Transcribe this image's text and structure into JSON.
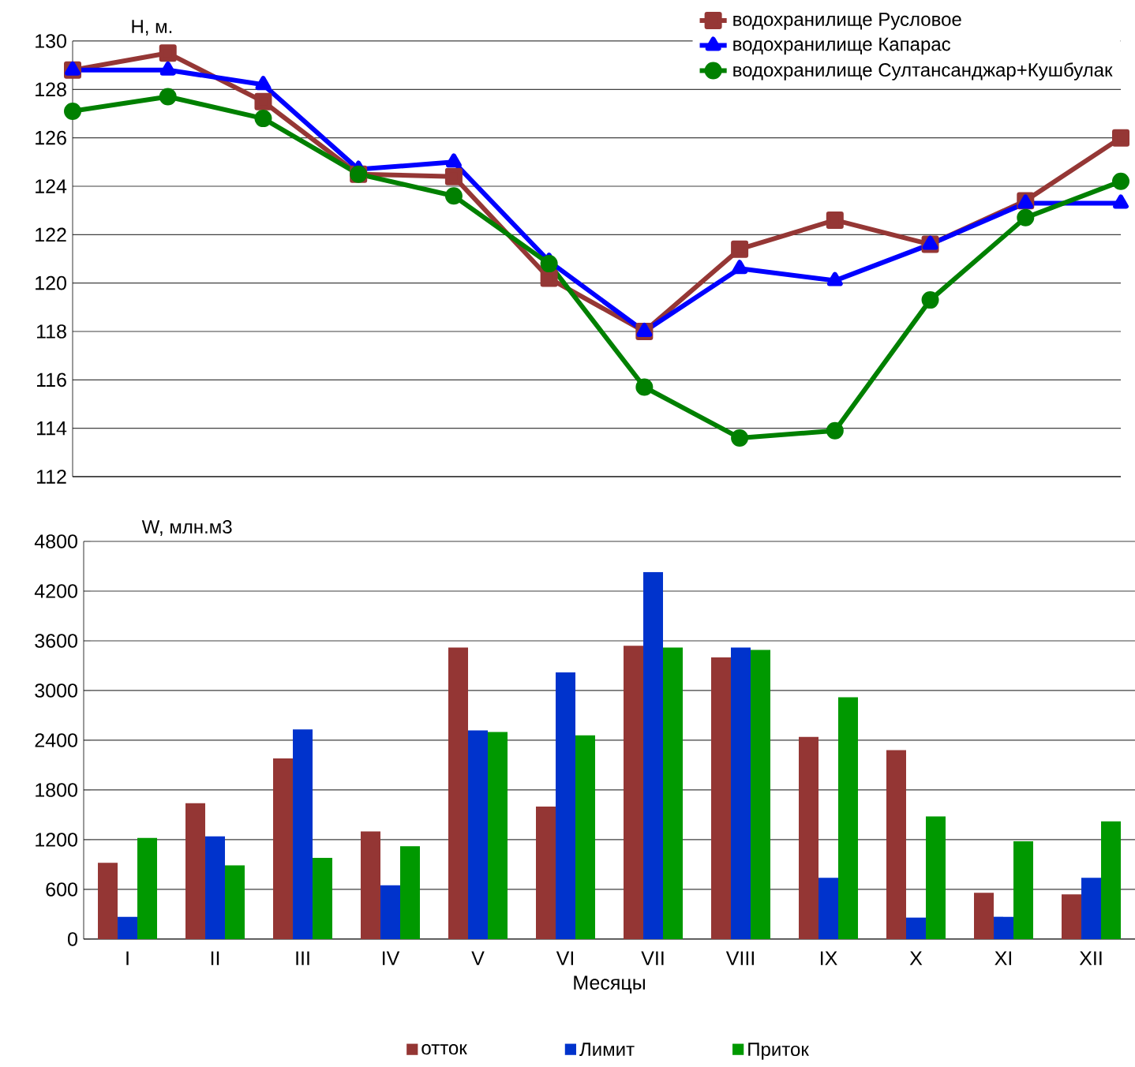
{
  "chart_data": [
    {
      "type": "line",
      "ylabel": "H, м.",
      "categories": [
        null,
        null,
        null,
        null,
        null,
        null,
        null,
        null,
        null,
        null,
        null,
        null
      ],
      "ylim": [
        112,
        130
      ],
      "yticks": [
        112,
        114,
        116,
        118,
        120,
        122,
        124,
        126,
        128,
        130
      ],
      "grid": "y",
      "legend": "top right",
      "line_style": "solid",
      "series": [
        {
          "name": "водохранилище Русловое",
          "color": "#953735",
          "marker": "square",
          "values": [
            128.8,
            129.5,
            127.5,
            124.5,
            124.4,
            120.2,
            118.0,
            121.4,
            122.6,
            121.6,
            123.4,
            126.0
          ]
        },
        {
          "name": "водохранилище Капарас",
          "color": "#0000ff",
          "marker": "triangle",
          "values": [
            128.8,
            128.8,
            128.2,
            124.7,
            125.0,
            120.9,
            118.0,
            120.6,
            120.1,
            121.6,
            123.3,
            123.3
          ]
        },
        {
          "name": "водохранилище Султансанджар+Кушбулак",
          "color": "#008000",
          "marker": "circle",
          "values": [
            127.1,
            127.7,
            126.8,
            124.5,
            123.6,
            120.8,
            115.7,
            113.6,
            113.9,
            119.3,
            122.7,
            124.2
          ]
        }
      ]
    },
    {
      "type": "bar",
      "ylabel": "W, млн.м3",
      "xlabel": "Месяцы",
      "categories": [
        "I",
        "II",
        "III",
        "IV",
        "V",
        "VI",
        "VII",
        "VIII",
        "IX",
        "X",
        "XI",
        "XII"
      ],
      "ylim": [
        0,
        4800
      ],
      "yticks": [
        0,
        600,
        1200,
        1800,
        2400,
        3000,
        3600,
        4200,
        4800
      ],
      "grid": "y",
      "legend": "bottom",
      "series": [
        {
          "name": "отток",
          "color": "#943634",
          "values": [
            920,
            1640,
            2180,
            1300,
            3520,
            1600,
            3540,
            3400,
            2440,
            2280,
            560,
            540
          ]
        },
        {
          "name": "Лимит",
          "color": "#0033cc",
          "values": [
            270,
            1240,
            2530,
            650,
            2520,
            3220,
            4430,
            3520,
            740,
            260,
            270,
            740
          ]
        },
        {
          "name": "Приток",
          "color": "#009900",
          "values": [
            1220,
            890,
            980,
            1120,
            2500,
            2460,
            3520,
            3490,
            2920,
            1480,
            1180,
            1420
          ]
        }
      ]
    }
  ]
}
